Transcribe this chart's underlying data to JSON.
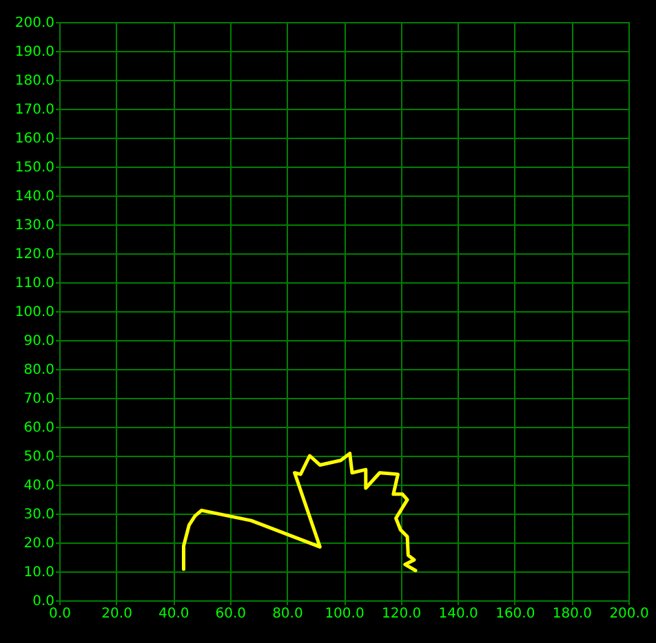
{
  "chart_data": {
    "type": "line",
    "grid": true,
    "line_style": "solid",
    "x": [
      43.7,
      43.7,
      45.6,
      47.7,
      50,
      67.4,
      91.6,
      82.7,
      84.8,
      88,
      91.6,
      98.9,
      102.1,
      102.9,
      107.7,
      107.7,
      112.6,
      119,
      117.4,
      120.6,
      122.3,
      118.3,
      119.9,
      122.3,
      122.6,
      124.7,
      121.5,
      125.2
    ],
    "series": [
      {
        "color": "#ffff00",
        "values": [
          10.8,
          18.8,
          26,
          29.2,
          31.1,
          27.6,
          18.5,
          44.1,
          43.6,
          50,
          46.8,
          48.4,
          50.8,
          44.1,
          45.2,
          38.8,
          44.1,
          43.6,
          36.7,
          36.7,
          34.8,
          28.4,
          24.4,
          22,
          15.6,
          14,
          12.4,
          10.3
        ]
      }
    ],
    "xlim": [
      0,
      200
    ],
    "ylim": [
      0,
      200
    ],
    "xticks": [
      {
        "value": 0,
        "label": "0.0"
      },
      {
        "value": 20,
        "label": "20.0"
      },
      {
        "value": 40,
        "label": "40.0"
      },
      {
        "value": 60,
        "label": "60.0"
      },
      {
        "value": 80,
        "label": "80.0"
      },
      {
        "value": 100,
        "label": "100.0"
      },
      {
        "value": 120,
        "label": "120.0"
      },
      {
        "value": 140,
        "label": "140.0"
      },
      {
        "value": 160,
        "label": "160.0"
      },
      {
        "value": 180,
        "label": "180.0"
      },
      {
        "value": 200,
        "label": "200.0"
      }
    ],
    "yticks": [
      {
        "value": 0,
        "label": "0.0"
      },
      {
        "value": 10,
        "label": "10.0"
      },
      {
        "value": 20,
        "label": "20.0"
      },
      {
        "value": 30,
        "label": "30.0"
      },
      {
        "value": 40,
        "label": "40.0"
      },
      {
        "value": 50,
        "label": "50.0"
      },
      {
        "value": 60,
        "label": "60.0"
      },
      {
        "value": 70,
        "label": "70.0"
      },
      {
        "value": 80,
        "label": "80.0"
      },
      {
        "value": 90,
        "label": "90.0"
      },
      {
        "value": 100,
        "label": "100.0"
      },
      {
        "value": 110,
        "label": "110.0"
      },
      {
        "value": 120,
        "label": "120.0"
      },
      {
        "value": 130,
        "label": "130.0"
      },
      {
        "value": 140,
        "label": "140.0"
      },
      {
        "value": 150,
        "label": "150.0"
      },
      {
        "value": 160,
        "label": "160.0"
      },
      {
        "value": 170,
        "label": "170.0"
      },
      {
        "value": 180,
        "label": "180.0"
      },
      {
        "value": 190,
        "label": "190.0"
      },
      {
        "value": 200,
        "label": "200.0"
      }
    ]
  }
}
